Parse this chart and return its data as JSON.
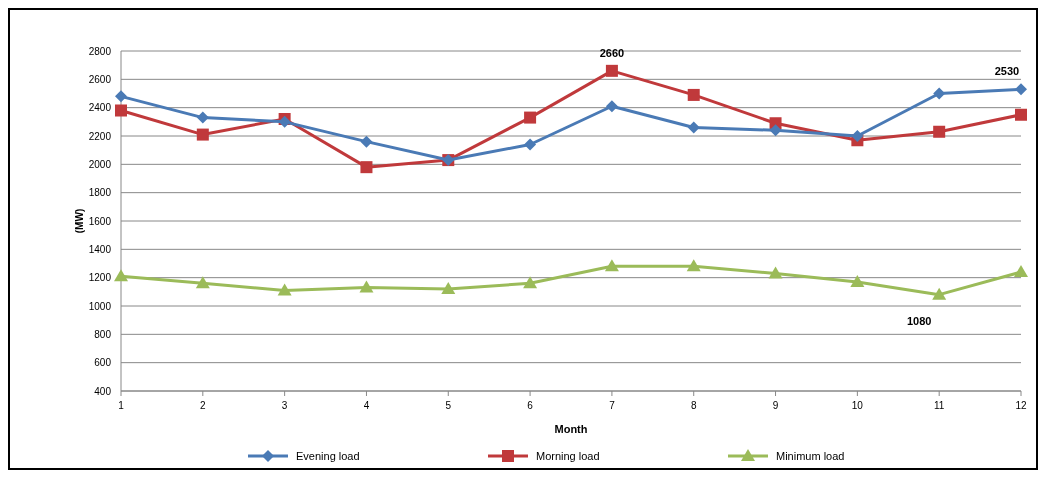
{
  "chart_data": {
    "type": "line",
    "xlabel": "Month",
    "ylabel": "(MW)",
    "x": [
      1,
      2,
      3,
      4,
      5,
      6,
      7,
      8,
      9,
      10,
      11,
      12
    ],
    "xlim": [
      1,
      12
    ],
    "xticks": [
      1,
      2,
      3,
      4,
      5,
      6,
      7,
      8,
      9,
      10,
      11,
      12
    ],
    "ylim": [
      400,
      2800
    ],
    "yticks": [
      400,
      600,
      800,
      1000,
      1200,
      1400,
      1600,
      1800,
      2000,
      2200,
      2400,
      2600,
      2800
    ],
    "grid": "y",
    "legend": "bottom",
    "series": [
      {
        "name": "Evening load",
        "color": "#4a7ab5",
        "marker": "diamond",
        "values": [
          2480,
          2330,
          2300,
          2160,
          2030,
          2140,
          2410,
          2260,
          2240,
          2200,
          2500,
          2530
        ]
      },
      {
        "name": "Morning load",
        "color": "#c0393b",
        "marker": "square",
        "values": [
          2380,
          2210,
          2320,
          1980,
          2030,
          2330,
          2660,
          2490,
          2290,
          2170,
          2230,
          2350
        ]
      },
      {
        "name": "Minimum load",
        "color": "#9bbb59",
        "marker": "triangle",
        "values": [
          1210,
          1160,
          1110,
          1130,
          1120,
          1160,
          1280,
          1280,
          1230,
          1170,
          1080,
          1240
        ]
      }
    ],
    "annotations": [
      {
        "text": "2660",
        "x": 7,
        "y": 2660
      },
      {
        "text": "2530",
        "x": 12,
        "y": 2530
      },
      {
        "text": "1080",
        "x": 11,
        "y": 1080
      }
    ]
  }
}
